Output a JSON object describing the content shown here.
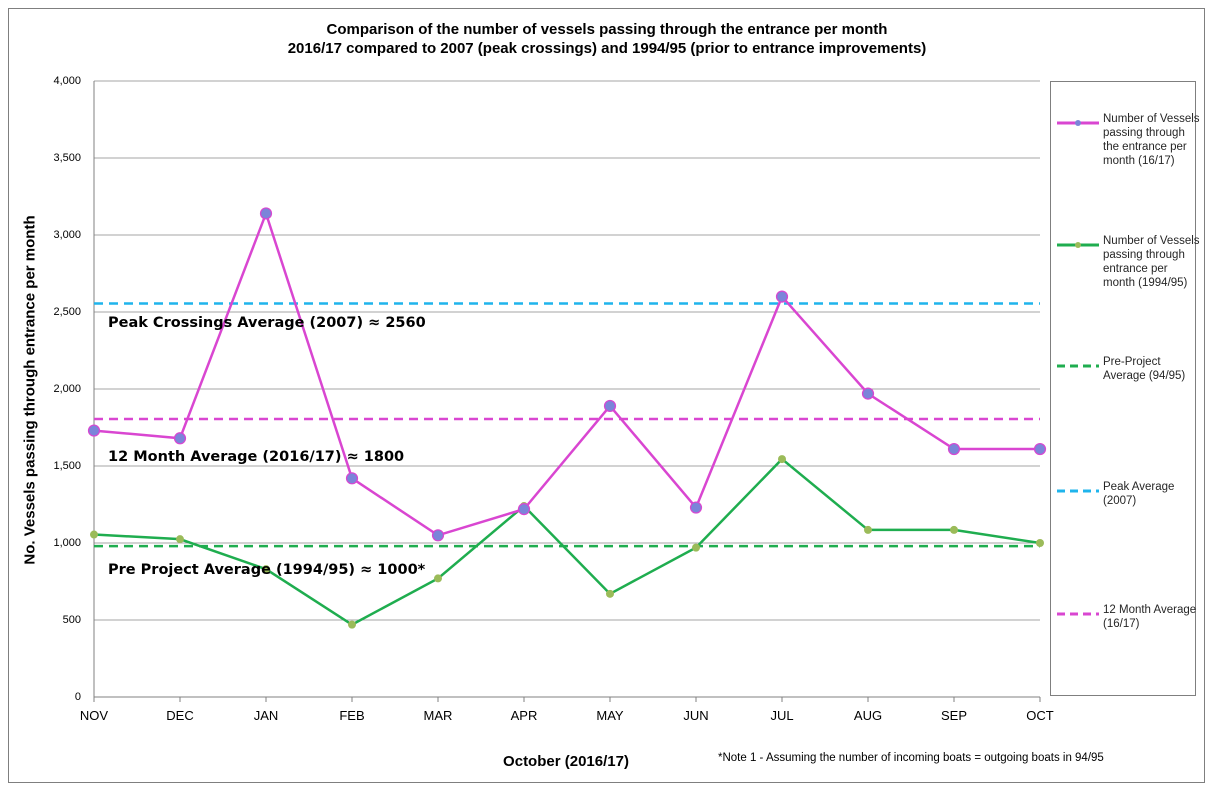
{
  "title_line1": "Comparison of the number of vessels passing through the entrance per month",
  "title_line2": "2016/17 compared to 2007 (peak crossings) and 1994/95 (prior to entrance improvements)",
  "ylabel": "No. Vessels passing through entrance per month",
  "xlabel": "October (2016/17)",
  "note": "*Note 1 - Assuming the number of incoming boats = outgoing boats in 94/95",
  "annotations": {
    "peak": "Peak Crossings Average (2007) ≈ 2560",
    "twelve_month": "12 Month Average (2016/17) ≈ 1800",
    "pre_project": "Pre Project Average (1994/95) ≈ 1000*"
  },
  "colors": {
    "magenta": "#d946d1",
    "marker_purple": "#7b84d9",
    "green": "#1fad4f",
    "marker_olive": "#9bbb59",
    "cyan": "#1fb4ec",
    "grid": "#a6a6a6"
  },
  "chart_data": {
    "type": "line",
    "categories": [
      "NOV",
      "DEC",
      "JAN",
      "FEB",
      "MAR",
      "APR",
      "MAY",
      "JUN",
      "JUL",
      "AUG",
      "SEP",
      "OCT"
    ],
    "yticks": [
      "0",
      "500",
      "1,000",
      "1,500",
      "2,000",
      "2,500",
      "3,000",
      "3,500",
      "4,000"
    ],
    "ylim": [
      0,
      4000
    ],
    "grid": true,
    "legend_position": "right",
    "series": [
      {
        "name": "Number of Vessels passing through the entrance per month (16/17)",
        "values": [
          1730,
          1680,
          3140,
          1420,
          1050,
          1220,
          1890,
          1230,
          2600,
          1970,
          1610,
          1610
        ]
      },
      {
        "name": "Number of Vessels passing through entrance per month (1994/95)",
        "values": [
          1055,
          1025,
          830,
          470,
          770,
          1240,
          670,
          970,
          1545,
          1085,
          1085,
          1000
        ]
      }
    ],
    "reference_lines": [
      {
        "name": "Pre-Project Average (94/95)",
        "value": 980
      },
      {
        "name": "Peak Average (2007)",
        "value": 2555
      },
      {
        "name": "12 Month Average (16/17)",
        "value": 1805
      }
    ]
  }
}
